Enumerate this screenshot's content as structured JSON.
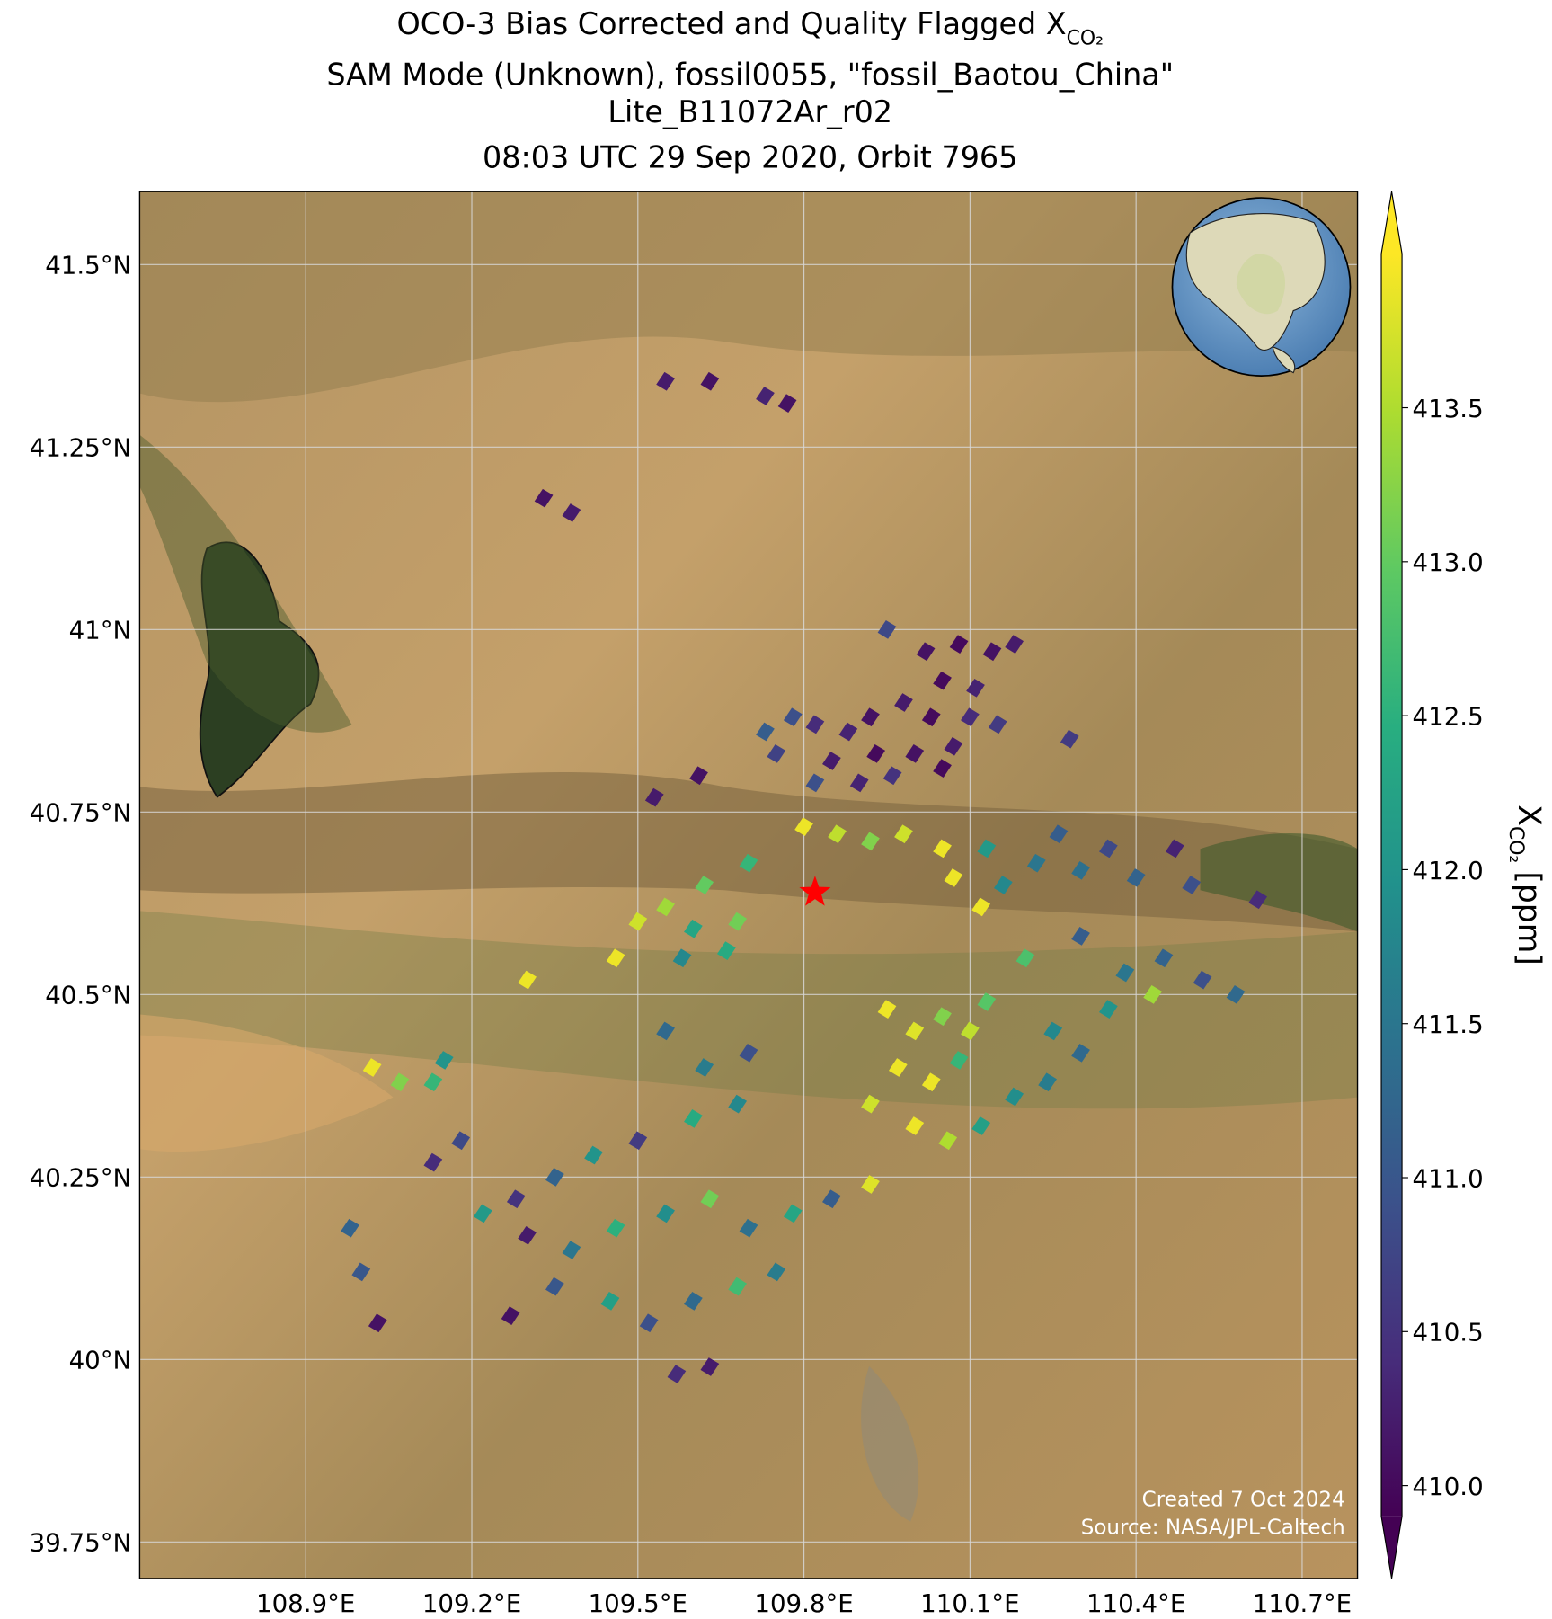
{
  "chart_data": {
    "type": "map",
    "title": [
      "OCO-3 Bias Corrected and Quality Flagged X",
      "SAM Mode (Unknown), fossil0055, \"fossil_Baotou_China\"",
      "Lite_B11072Ar_r02",
      "08:03 UTC 29 Sep 2020, Orbit 7965"
    ],
    "title_subscript": "CO₂",
    "xlim": [
      108.6,
      110.8
    ],
    "ylim": [
      39.7,
      41.6
    ],
    "xticks": [
      {
        "value": 108.9,
        "label": "108.9°E"
      },
      {
        "value": 109.2,
        "label": "109.2°E"
      },
      {
        "value": 109.5,
        "label": "109.5°E"
      },
      {
        "value": 109.8,
        "label": "109.8°E"
      },
      {
        "value": 110.1,
        "label": "110.1°E"
      },
      {
        "value": 110.4,
        "label": "110.4°E"
      },
      {
        "value": 110.7,
        "label": "110.7°E"
      }
    ],
    "yticks": [
      {
        "value": 39.75,
        "label": "39.75°N"
      },
      {
        "value": 40,
        "label": "40°N"
      },
      {
        "value": 40.25,
        "label": "40.25°N"
      },
      {
        "value": 40.5,
        "label": "40.5°N"
      },
      {
        "value": 40.75,
        "label": "40.75°N"
      },
      {
        "value": 41,
        "label": "41°N"
      },
      {
        "value": 41.25,
        "label": "41.25°N"
      },
      {
        "value": 41.5,
        "label": "41.5°N"
      }
    ],
    "grid": true,
    "colorbar": {
      "label": "X",
      "label_subscript": "CO₂",
      "label_unit": "[ppm]",
      "colormap": "viridis",
      "clim": [
        409.9,
        414
      ],
      "ticks": [
        {
          "value": 410,
          "label": "410.0"
        },
        410.5,
        {
          "value": 411,
          "label": "411.0"
        },
        411.5,
        {
          "value": 412,
          "label": "412.0"
        },
        412.5,
        {
          "value": 413,
          "label": "413.0"
        },
        413.5
      ]
    },
    "site": {
      "lon": 109.82,
      "lat": 40.64,
      "color": "#ff0000"
    },
    "soundings": {
      "lon": [
        110.02,
        110.08,
        110.14,
        110.18,
        110.05,
        110.11,
        109.98,
        110.03,
        110.1,
        110.15,
        109.92,
        109.88,
        109.82,
        109.78,
        109.73,
        109.75,
        109.85,
        109.93,
        110.0,
        110.07,
        109.82,
        109.9,
        109.96,
        110.05,
        109.95,
        110.28,
        109.53,
        109.61,
        109.55,
        109.63,
        109.73,
        109.77,
        109.33,
        109.38,
        109.8,
        109.86,
        109.92,
        109.98,
        110.05,
        110.07,
        110.13,
        110.16,
        110.12,
        110.22,
        110.26,
        110.3,
        110.35,
        110.4,
        110.47,
        110.5,
        110.62,
        109.7,
        109.62,
        109.55,
        109.6,
        109.68,
        109.5,
        109.46,
        109.58,
        109.66,
        109.3,
        109.95,
        110.0,
        110.05,
        110.1,
        110.13,
        109.97,
        110.03,
        110.08,
        109.92,
        110.0,
        110.06,
        110.12,
        110.18,
        110.24,
        110.3,
        110.25,
        110.35,
        110.38,
        110.45,
        110.52,
        110.58,
        110.43,
        110.2,
        110.3,
        109.55,
        109.62,
        109.7,
        109.68,
        109.6,
        109.5,
        109.42,
        109.35,
        109.28,
        109.22,
        109.3,
        109.38,
        109.46,
        109.55,
        109.63,
        109.7,
        109.78,
        109.85,
        109.92,
        109.75,
        109.68,
        109.6,
        109.52,
        109.45,
        109.35,
        109.27,
        109.57,
        109.63,
        109.13,
        109.18,
        109.02,
        109.07,
        109.13,
        109.15,
        109.0,
        109.03,
        108.98
      ],
      "lat": [
        40.97,
        40.98,
        40.97,
        40.98,
        40.93,
        40.92,
        40.9,
        40.88,
        40.88,
        40.87,
        40.88,
        40.86,
        40.87,
        40.88,
        40.86,
        40.83,
        40.82,
        40.83,
        40.83,
        40.84,
        40.79,
        40.79,
        40.8,
        40.81,
        41.0,
        40.85,
        40.77,
        40.8,
        41.34,
        41.34,
        41.32,
        41.31,
        41.18,
        41.16,
        40.73,
        40.72,
        40.71,
        40.72,
        40.7,
        40.66,
        40.7,
        40.65,
        40.62,
        40.68,
        40.72,
        40.67,
        40.7,
        40.66,
        40.7,
        40.65,
        40.63,
        40.68,
        40.65,
        40.62,
        40.59,
        40.6,
        40.6,
        40.55,
        40.55,
        40.56,
        40.52,
        40.48,
        40.45,
        40.47,
        40.45,
        40.49,
        40.4,
        40.38,
        40.41,
        40.35,
        40.32,
        40.3,
        40.32,
        40.36,
        40.38,
        40.42,
        40.45,
        40.48,
        40.53,
        40.55,
        40.52,
        40.5,
        40.5,
        40.55,
        40.58,
        40.45,
        40.4,
        40.42,
        40.35,
        40.33,
        40.3,
        40.28,
        40.25,
        40.22,
        40.2,
        40.17,
        40.15,
        40.18,
        40.2,
        40.22,
        40.18,
        40.2,
        40.22,
        40.24,
        40.12,
        40.1,
        40.08,
        40.05,
        40.08,
        40.1,
        40.06,
        39.98,
        39.99,
        40.27,
        40.3,
        40.4,
        40.38,
        40.38,
        40.41,
        40.12,
        40.05,
        40.18
      ],
      "xco2": [
        410.1,
        410.0,
        410.1,
        410.2,
        410.0,
        410.3,
        410.2,
        410.0,
        410.4,
        410.6,
        410.1,
        410.3,
        410.4,
        410.9,
        411.1,
        410.7,
        410.2,
        410.0,
        410.1,
        410.2,
        410.9,
        410.3,
        410.5,
        410.0,
        410.8,
        410.6,
        410.2,
        410.1,
        410.2,
        410.1,
        410.3,
        410.1,
        410.1,
        410.2,
        413.9,
        413.6,
        413.2,
        413.7,
        413.9,
        413.9,
        412.1,
        411.8,
        413.9,
        411.5,
        411.1,
        411.4,
        410.8,
        411.2,
        410.3,
        410.9,
        410.4,
        412.6,
        413.0,
        413.4,
        412.3,
        413.1,
        413.7,
        413.9,
        411.8,
        412.4,
        413.9,
        413.9,
        413.8,
        413.2,
        413.6,
        412.9,
        413.9,
        413.9,
        412.6,
        413.7,
        413.9,
        413.5,
        412.2,
        411.9,
        411.6,
        411.3,
        411.8,
        412.0,
        411.5,
        411.2,
        410.9,
        411.3,
        413.4,
        412.8,
        411.1,
        411.3,
        411.6,
        410.9,
        411.8,
        412.4,
        410.6,
        412.0,
        411.2,
        410.5,
        412.1,
        410.2,
        411.5,
        412.5,
        411.9,
        413.1,
        411.4,
        412.3,
        411.1,
        413.8,
        411.6,
        412.7,
        411.3,
        410.9,
        412.2,
        411.0,
        410.1,
        410.4,
        410.2,
        410.4,
        410.8,
        413.9,
        413.2,
        412.6,
        412.0,
        411.0,
        410.1,
        411.2
      ]
    },
    "credits": [
      "Created 7 Oct 2024",
      "Source: NASA/JPL-Caltech"
    ]
  }
}
